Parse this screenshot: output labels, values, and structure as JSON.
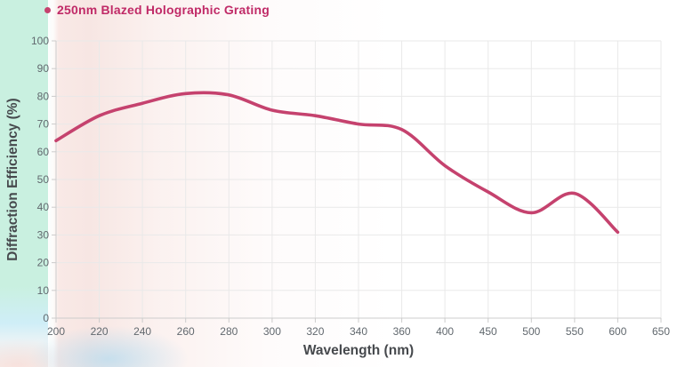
{
  "chart_data": {
    "type": "line",
    "title": "",
    "xlabel": "Wavelength (nm)",
    "ylabel": "Diffraction Efficiency (%)",
    "categories": [
      "200",
      "220",
      "240",
      "260",
      "280",
      "300",
      "320",
      "340",
      "360",
      "400",
      "450",
      "500",
      "550",
      "600",
      "650"
    ],
    "series": [
      {
        "name": "250nm Blazed Holographic Grating",
        "color": "#c5426e",
        "values": [
          64,
          73,
          77.5,
          81,
          80.5,
          75,
          73,
          70,
          68,
          55,
          45.5,
          38,
          45,
          31,
          null
        ]
      }
    ],
    "ylim": [
      0,
      100
    ],
    "y_tick_step": 10,
    "y_ticks": [
      0,
      10,
      20,
      30,
      40,
      50,
      60,
      70,
      80,
      90,
      100
    ],
    "grid": true,
    "legend_position": "top-left",
    "curve_style": "smooth-spline",
    "x_axis_layout_hint": "category axis - uneven wavelength steps drawn evenly spaced"
  },
  "colors": {
    "line": "#c5426e",
    "legend_text": "#c02a67",
    "grid": "#e9e9e9",
    "axis_border": "#cccccc",
    "tick_text": "#61686e",
    "axis_title_text": "#46494d",
    "background_mint": "#c9f0e0",
    "background_pink": "#f8e8e5"
  }
}
